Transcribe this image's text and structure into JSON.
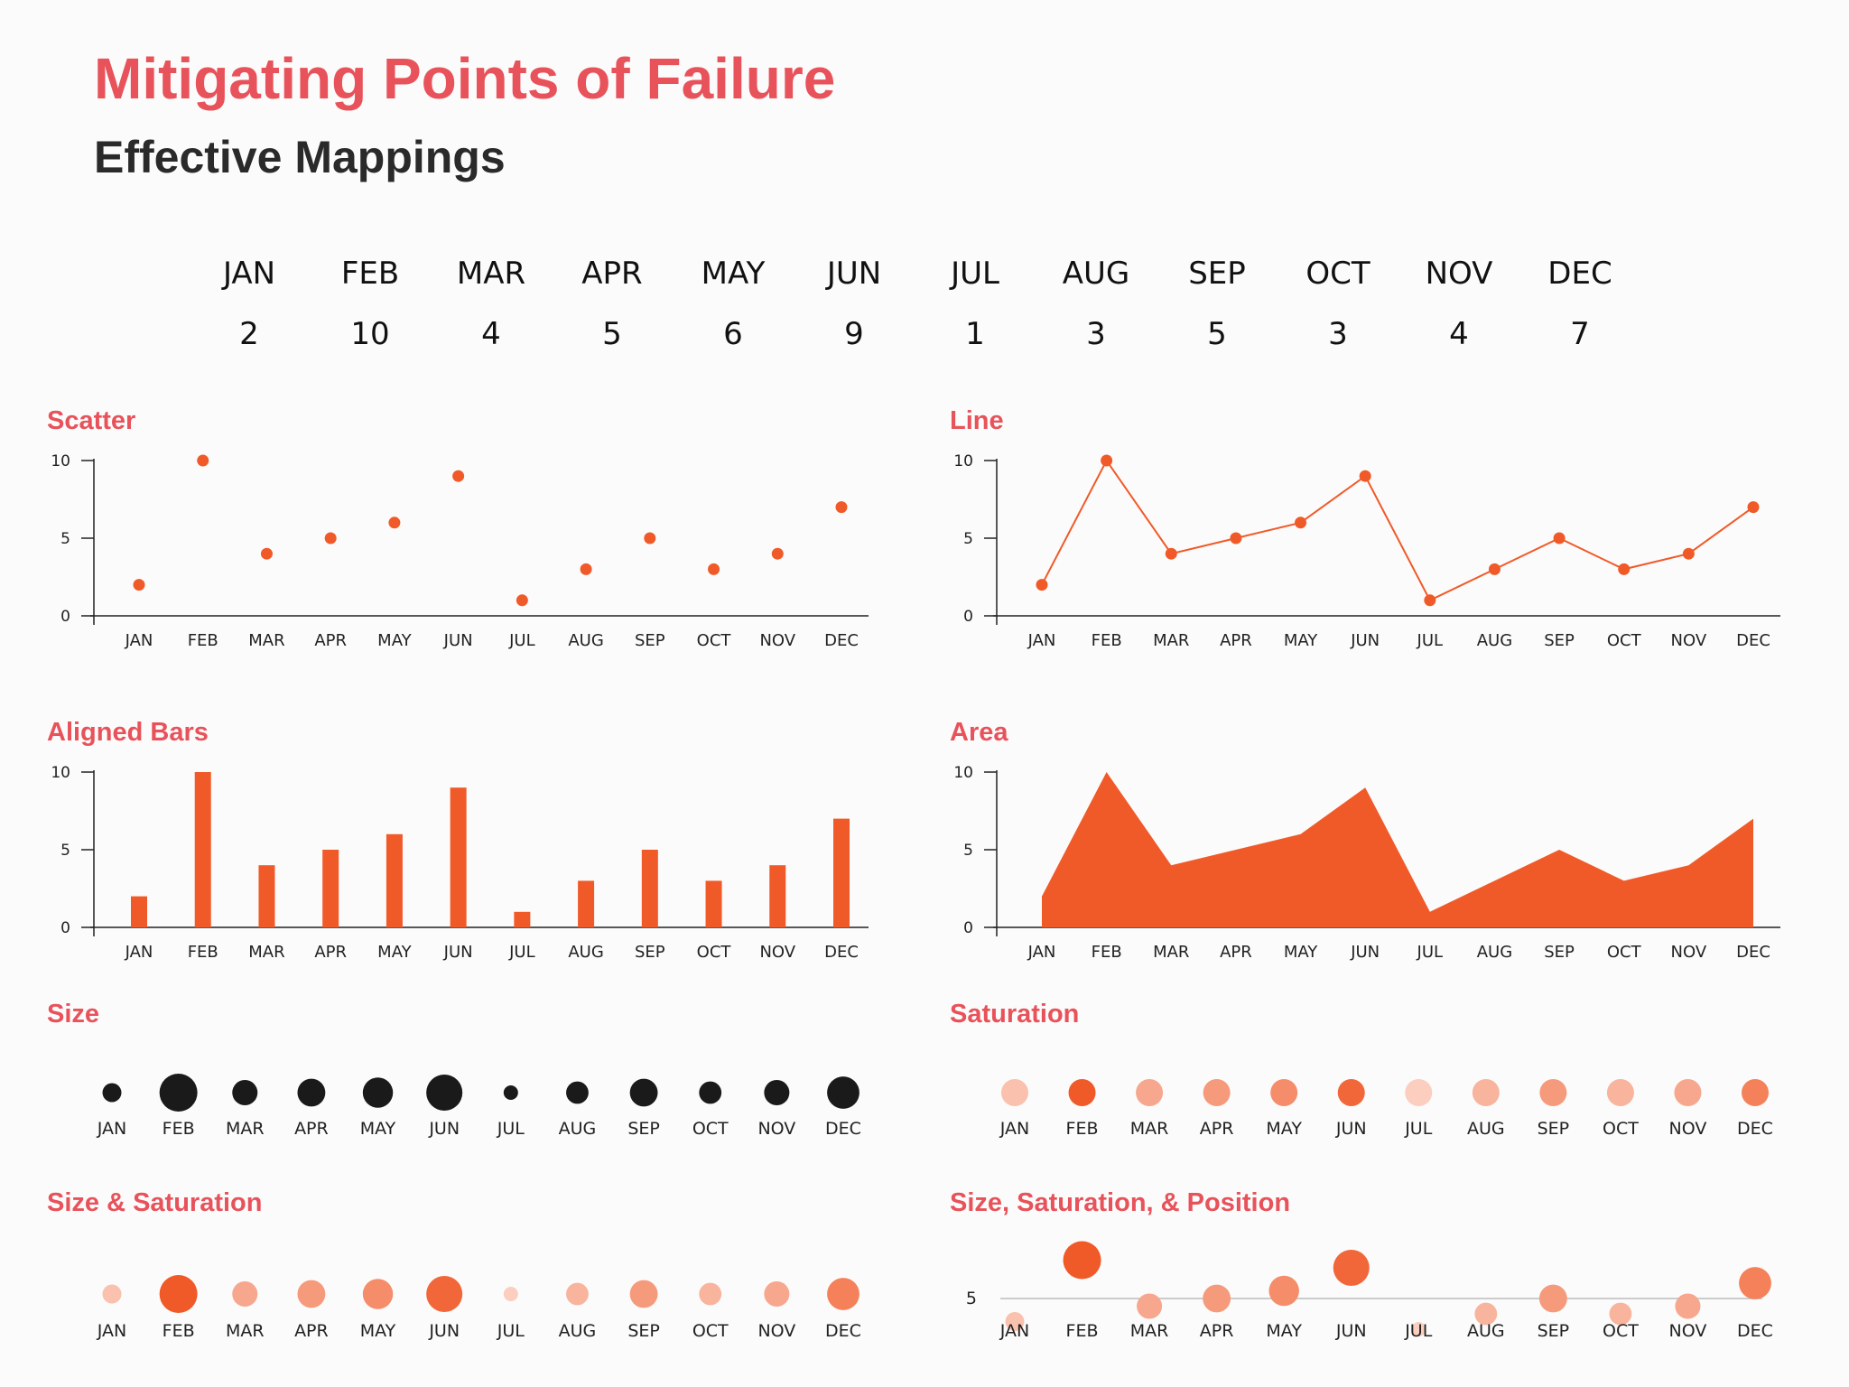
{
  "title": "Mitigating Points of Failure",
  "subtitle": "Effective Mappings",
  "chart_data": {
    "type": "table",
    "categories": [
      "JAN",
      "FEB",
      "MAR",
      "APR",
      "MAY",
      "JUN",
      "JUL",
      "AUG",
      "SEP",
      "OCT",
      "NOV",
      "DEC"
    ],
    "values": [
      2,
      10,
      4,
      5,
      6,
      9,
      1,
      3,
      5,
      3,
      4,
      7
    ],
    "accent_color": "#f05a28",
    "size_color": "#1a1a1a",
    "panels": [
      {
        "id": "scatter",
        "type": "scatter",
        "title": "Scatter",
        "ylim": [
          0,
          10
        ],
        "yticks": [
          0,
          5,
          10
        ]
      },
      {
        "id": "line",
        "type": "line",
        "title": "Line",
        "ylim": [
          0,
          10
        ],
        "yticks": [
          0,
          5,
          10
        ]
      },
      {
        "id": "bars",
        "type": "bar",
        "title": "Aligned Bars",
        "ylim": [
          0,
          10
        ],
        "yticks": [
          0,
          5,
          10
        ]
      },
      {
        "id": "area",
        "type": "area",
        "title": "Area",
        "ylim": [
          0,
          10
        ],
        "yticks": [
          0,
          5,
          10
        ]
      },
      {
        "id": "size",
        "type": "scatter",
        "encoding": "size",
        "title": "Size"
      },
      {
        "id": "saturation",
        "type": "scatter",
        "encoding": "saturation",
        "title": "Saturation"
      },
      {
        "id": "sizesat",
        "type": "scatter",
        "encoding": "size+saturation",
        "title": "Size & Saturation"
      },
      {
        "id": "ssp",
        "type": "scatter",
        "encoding": "size+saturation+position",
        "title": "Size, Saturation, & Position",
        "reference_value": 5,
        "reference_label": "5"
      }
    ]
  }
}
